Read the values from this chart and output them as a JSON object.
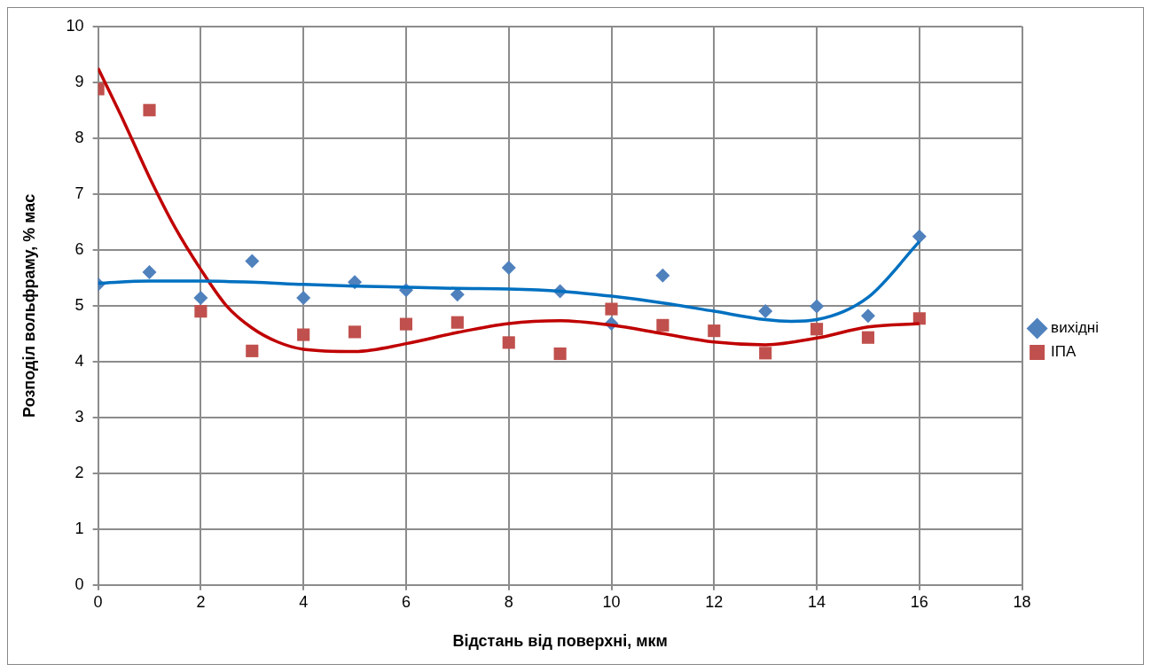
{
  "chart_data": {
    "type": "scatter",
    "xlabel": "Відстань від поверхні, мкм",
    "ylabel": "Розподіл вольфраму, % мас",
    "xlim": [
      0,
      18
    ],
    "xticks": [
      0,
      2,
      4,
      6,
      8,
      10,
      12,
      14,
      16,
      18
    ],
    "ylim": [
      0,
      10
    ],
    "yticks": [
      0,
      1,
      2,
      3,
      4,
      5,
      6,
      7,
      8,
      9,
      10
    ],
    "grid": true,
    "legend": "right",
    "series": [
      {
        "name": "вихідні",
        "type": "scatter",
        "marker": "diamond",
        "color": "#4f81bd",
        "x": [
          0,
          1,
          2,
          3,
          4,
          5,
          6,
          7,
          8,
          9,
          10,
          11,
          12,
          13,
          14,
          15,
          16
        ],
        "values": [
          5.38,
          5.6,
          5.14,
          5.8,
          5.14,
          5.42,
          5.28,
          5.2,
          5.68,
          5.26,
          4.68,
          5.54,
          null,
          4.9,
          4.99,
          4.82,
          6.24
        ]
      },
      {
        "name": "ІПА",
        "type": "scatter",
        "marker": "square",
        "color": "#c0504d",
        "x": [
          0,
          1,
          2,
          3,
          4,
          5,
          6,
          7,
          8,
          9,
          10,
          11,
          12,
          13,
          14,
          15,
          16
        ],
        "values": [
          8.88,
          8.5,
          4.9,
          4.19,
          4.48,
          4.53,
          4.67,
          4.7,
          4.34,
          4.14,
          4.94,
          4.65,
          4.55,
          4.15,
          4.58,
          4.43,
          4.77
        ]
      },
      {
        "type": "line",
        "marker": "none",
        "color": "#0070c0",
        "x": [
          0,
          1,
          2,
          3,
          4,
          5,
          6,
          7,
          8,
          9,
          10,
          11,
          12,
          13,
          13.5,
          14,
          15,
          16
        ],
        "values": [
          5.4,
          5.44,
          5.44,
          5.42,
          5.38,
          5.35,
          5.33,
          5.31,
          5.3,
          5.26,
          5.17,
          5.05,
          4.9,
          4.75,
          4.72,
          4.75,
          5.15,
          6.15
        ]
      },
      {
        "type": "line",
        "marker": "none",
        "color": "#c00000",
        "x": [
          0,
          0.5,
          1,
          1.5,
          2,
          2.5,
          3,
          3.5,
          4,
          5,
          6,
          7,
          8,
          9,
          10,
          11,
          12,
          13,
          14,
          15,
          16
        ],
        "values": [
          9.25,
          8.3,
          7.3,
          6.4,
          5.65,
          5.0,
          4.6,
          4.35,
          4.22,
          4.18,
          4.32,
          4.52,
          4.68,
          4.73,
          4.65,
          4.5,
          4.35,
          4.3,
          4.42,
          4.62,
          4.68
        ]
      }
    ]
  }
}
